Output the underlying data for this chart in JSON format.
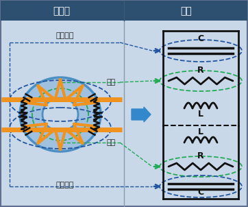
{
  "title_left": "実態図",
  "title_right": "名称",
  "label_stray_cap_top": "浮遊容量",
  "label_iron_loss_top": "鉄損",
  "label_iron_loss_bottom": "鉄損",
  "label_stray_cap_bottom": "浮遊容量",
  "bg_color": "#c8d8e8",
  "header_color": "#2d5070",
  "header_text_color": "#ffffff",
  "orange_color": "#f0921e",
  "blue_color": "#4a90c4",
  "dark_blue": "#2255a0",
  "green_dashed": "#22aa55",
  "circuit_line_color": "#111111",
  "arrow_color": "#3388cc",
  "divider_color": "#8899aa"
}
